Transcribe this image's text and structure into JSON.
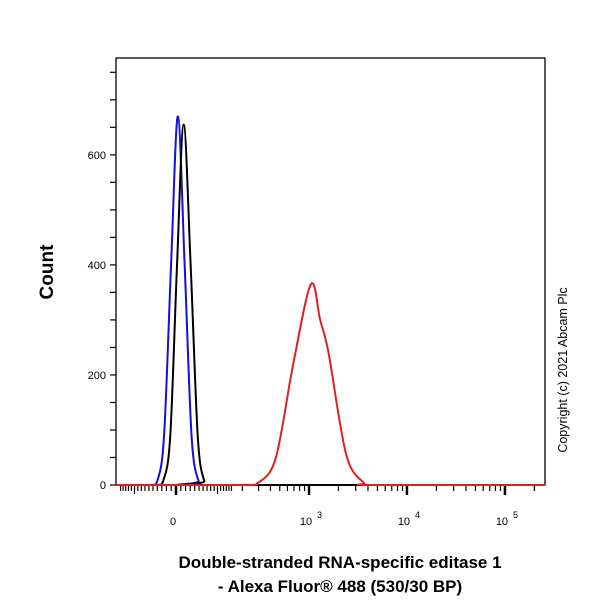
{
  "chart_data": {
    "type": "line",
    "subtype": "flow-cytometry-histogram",
    "xlabel_line1": "Double-stranded RNA-specific editase 1",
    "xlabel_line2": "- Alexa Fluor® 488 (530/30 BP)",
    "ylabel": "Count",
    "x_scale": "biexponential",
    "xlim": [
      -170,
      262144
    ],
    "ylim": [
      0,
      776
    ],
    "y_ticks": [
      0,
      200,
      400,
      600
    ],
    "y_minor_step": 50,
    "x_ticks": [
      {
        "value": 0,
        "label": "0",
        "exp": ""
      },
      {
        "value": 1000,
        "label": "10",
        "exp": "3"
      },
      {
        "value": 10000,
        "label": "10",
        "exp": "4"
      },
      {
        "value": 100000,
        "label": "10",
        "exp": "5"
      }
    ],
    "grid": false,
    "series": [
      {
        "name": "blue",
        "color": "#1010e0",
        "x": [
          -170,
          -55,
          -40,
          -25,
          -10,
          4,
          18,
          33,
          49,
          65,
          262144
        ],
        "y": [
          0,
          0,
          7,
          90,
          405,
          670,
          400,
          88,
          7,
          0,
          0
        ]
      },
      {
        "name": "black",
        "color": "#000000",
        "x": [
          -170,
          -42,
          -27,
          -12,
          2,
          16,
          31,
          47,
          63,
          80,
          262144
        ],
        "y": [
          0,
          0,
          7,
          88,
          397,
          655,
          397,
          88,
          7,
          0,
          0
        ]
      },
      {
        "name": "red",
        "color": "#e02020",
        "x": [
          -170,
          200,
          296,
          454,
          690,
          1047,
          1300,
          1584,
          2401,
          3634,
          4500,
          262144
        ],
        "y": [
          0,
          0,
          4,
          49,
          221,
          365,
          300,
          240,
          55,
          4,
          0,
          0
        ]
      }
    ]
  },
  "copyright": "Copyright (c) 2021 Abcam Plc"
}
